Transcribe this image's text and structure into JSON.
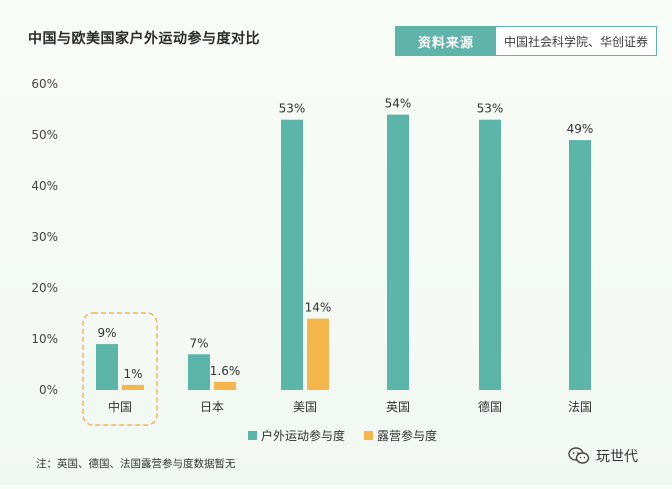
{
  "header": {
    "title": "中国与欧美国家户外运动参与度对比",
    "source_label": "资料来源",
    "source_text": "中国社会科学院、华创证券"
  },
  "footnote": "注：英国、德国、法国露营参与度数据暂无",
  "watermark": {
    "text": "玩世代",
    "icon": "wechat-icon"
  },
  "colors": {
    "outdoor": "#5bb5a9",
    "camping": "#f5b64b",
    "highlight_border": "#f2b45a",
    "source_accent": "#5fb3a8"
  },
  "chart_data": {
    "type": "bar",
    "title": "中国与欧美国家户外运动参与度对比",
    "categories": [
      "中国",
      "日本",
      "美国",
      "英国",
      "德国",
      "法国"
    ],
    "series": [
      {
        "name": "户外运动参与度",
        "values": [
          9,
          7,
          53,
          54,
          53,
          49
        ],
        "labels": [
          "9%",
          "7%",
          "53%",
          "54%",
          "53%",
          "49%"
        ],
        "color": "#5bb5a9"
      },
      {
        "name": "露营参与度",
        "values": [
          1,
          1.6,
          14,
          null,
          null,
          null
        ],
        "labels": [
          "1%",
          "1.6%",
          "14%",
          null,
          null,
          null
        ],
        "color": "#f5b64b"
      }
    ],
    "yticks": [
      "0%",
      "10%",
      "20%",
      "30%",
      "40%",
      "50%",
      "60%"
    ],
    "ylim": [
      0,
      60
    ],
    "grid": false,
    "legend": "bottom-center",
    "highlight_category": "中国"
  }
}
